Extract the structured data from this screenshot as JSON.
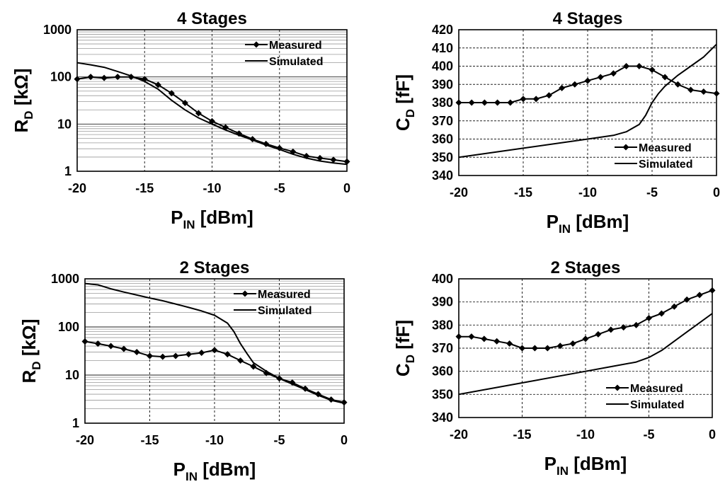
{
  "chart_data": [
    {
      "type": "line",
      "title": "4 Stages",
      "xlabel_main": "P",
      "xlabel_sub": "IN",
      "xlabel_rest": " [dBm]",
      "ylabel_main": "R",
      "ylabel_sub": "D",
      "ylabel_rest": " [kΩ]",
      "yscale": "log",
      "xlim": [
        -20,
        0
      ],
      "ylim": [
        1,
        1000
      ],
      "xticks": [
        -20,
        -15,
        -10,
        -5,
        0
      ],
      "yticks": [
        1,
        10,
        100,
        1000
      ],
      "xtick_labels": [
        "-20",
        "-15",
        "-10",
        "-5",
        "0"
      ],
      "ytick_labels": [
        "1",
        "10",
        "100",
        "1000"
      ],
      "legend_position": "top-right",
      "series": [
        {
          "name": "Measured",
          "marker": "diamond",
          "x": [
            -20,
            -19,
            -18,
            -17,
            -16,
            -15,
            -14,
            -13,
            -12,
            -11,
            -10,
            -9,
            -8,
            -7,
            -6,
            -5,
            -4,
            -3,
            -2,
            -1,
            0
          ],
          "values": [
            90,
            100,
            95,
            100,
            100,
            90,
            68,
            45,
            28,
            17,
            11.5,
            8.5,
            6.3,
            4.8,
            3.8,
            3.1,
            2.6,
            2.1,
            1.9,
            1.75,
            1.6
          ]
        },
        {
          "name": "Simulated",
          "marker": "none",
          "x": [
            -20,
            -19,
            -18,
            -17,
            -16,
            -15,
            -14,
            -13,
            -12,
            -11,
            -10,
            -9,
            -8,
            -7,
            -6,
            -5,
            -4,
            -3,
            -2,
            -1,
            0
          ],
          "values": [
            200,
            180,
            160,
            130,
            105,
            80,
            55,
            32,
            20,
            13.5,
            10,
            7.5,
            5.8,
            4.6,
            3.6,
            2.9,
            2.3,
            1.9,
            1.65,
            1.5,
            1.4
          ]
        }
      ]
    },
    {
      "type": "line",
      "title": "4 Stages",
      "xlabel_main": "P",
      "xlabel_sub": "IN",
      "xlabel_rest": " [dBm]",
      "ylabel_main": "C",
      "ylabel_sub": "D",
      "ylabel_rest": " [fF]",
      "yscale": "linear",
      "xlim": [
        -20,
        0
      ],
      "ylim": [
        340,
        420
      ],
      "xticks": [
        -20,
        -15,
        -10,
        -5,
        0
      ],
      "yticks": [
        340,
        350,
        360,
        370,
        380,
        390,
        400,
        410,
        420
      ],
      "xtick_labels": [
        "-20",
        "-15",
        "-10",
        "-5",
        "0"
      ],
      "ytick_labels": [
        "340",
        "350",
        "360",
        "370",
        "380",
        "390",
        "400",
        "410",
        "420"
      ],
      "legend_position": "bottom-right",
      "series": [
        {
          "name": "Measured",
          "marker": "diamond",
          "x": [
            -20,
            -19,
            -18,
            -17,
            -16,
            -15,
            -14,
            -13,
            -12,
            -11,
            -10,
            -9,
            -8,
            -7,
            -6,
            -5,
            -4,
            -3,
            -2,
            -1,
            0
          ],
          "values": [
            380,
            380,
            380,
            380,
            380,
            382,
            382,
            384,
            388,
            390,
            392,
            394,
            396,
            400,
            400,
            398,
            394,
            390,
            387,
            386,
            385
          ]
        },
        {
          "name": "Simulated",
          "marker": "none",
          "x": [
            -20,
            -15,
            -10,
            -8,
            -7,
            -6,
            -5.5,
            -5,
            -4.5,
            -4,
            -3,
            -2,
            -1,
            0
          ],
          "values": [
            350,
            355,
            360,
            362,
            364,
            368,
            373,
            380,
            385,
            389,
            395,
            400,
            405,
            412
          ]
        }
      ]
    },
    {
      "type": "line",
      "title": "2 Stages",
      "xlabel_main": "P",
      "xlabel_sub": "IN",
      "xlabel_rest": " [dBm]",
      "ylabel_main": "R",
      "ylabel_sub": "D",
      "ylabel_rest": " [kΩ]",
      "yscale": "log",
      "xlim": [
        -20,
        0
      ],
      "ylim": [
        1,
        1000
      ],
      "xticks": [
        -20,
        -15,
        -10,
        -5,
        0
      ],
      "yticks": [
        1,
        10,
        100,
        1000
      ],
      "xtick_labels": [
        "-20",
        "-15",
        "-10",
        "-5",
        "0"
      ],
      "ytick_labels": [
        "1",
        "10",
        "100",
        "1000"
      ],
      "legend_position": "top-right",
      "series": [
        {
          "name": "Measured",
          "marker": "diamond",
          "x": [
            -20,
            -19,
            -18,
            -17,
            -16,
            -15,
            -14,
            -13,
            -12,
            -11,
            -10,
            -9,
            -8,
            -7,
            -6,
            -5,
            -4,
            -3,
            -2,
            -1,
            0
          ],
          "values": [
            50,
            45,
            40,
            35,
            30,
            25,
            24,
            25,
            27,
            29,
            33,
            27,
            20,
            15,
            11,
            8.5,
            7,
            5.2,
            4,
            3.1,
            2.7
          ]
        },
        {
          "name": "Simulated",
          "marker": "none",
          "x": [
            -20,
            -19,
            -18,
            -17,
            -16,
            -15,
            -14,
            -13,
            -12,
            -11,
            -10,
            -9,
            -8.5,
            -8,
            -7.5,
            -7,
            -6,
            -5,
            -4,
            -3,
            -2,
            -1,
            0
          ],
          "values": [
            800,
            750,
            620,
            530,
            460,
            400,
            350,
            300,
            255,
            215,
            175,
            120,
            80,
            45,
            28,
            18,
            12,
            8.5,
            6.5,
            5,
            3.8,
            3,
            2.6
          ]
        }
      ]
    },
    {
      "type": "line",
      "title": "2 Stages",
      "xlabel_main": "P",
      "xlabel_sub": "IN",
      "xlabel_rest": " [dBm]",
      "ylabel_main": "C",
      "ylabel_sub": "D",
      "ylabel_rest": " [fF]",
      "yscale": "linear",
      "xlim": [
        -20,
        0
      ],
      "ylim": [
        340,
        400
      ],
      "xticks": [
        -20,
        -15,
        -10,
        -5,
        0
      ],
      "yticks": [
        340,
        350,
        360,
        370,
        380,
        390,
        400
      ],
      "xtick_labels": [
        "-20",
        "-15",
        "-10",
        "-5",
        "0"
      ],
      "ytick_labels": [
        "340",
        "350",
        "360",
        "370",
        "380",
        "390",
        "400"
      ],
      "legend_position": "bottom-right",
      "series": [
        {
          "name": "Measured",
          "marker": "diamond",
          "x": [
            -20,
            -19,
            -18,
            -17,
            -16,
            -15,
            -14,
            -13,
            -12,
            -11,
            -10,
            -9,
            -8,
            -7,
            -6,
            -5,
            -4,
            -3,
            -2,
            -1,
            0
          ],
          "values": [
            375,
            375,
            374,
            373,
            372,
            370,
            370,
            370,
            371,
            372,
            374,
            376,
            378,
            379,
            380,
            383,
            385,
            388,
            391,
            393,
            395
          ]
        },
        {
          "name": "Simulated",
          "marker": "none",
          "x": [
            -20,
            -15,
            -10,
            -8,
            -6,
            -5,
            -4,
            -3,
            -2,
            -1,
            0
          ],
          "values": [
            350,
            355,
            360,
            362,
            364,
            366,
            369,
            373,
            377,
            381,
            385
          ]
        }
      ]
    }
  ]
}
